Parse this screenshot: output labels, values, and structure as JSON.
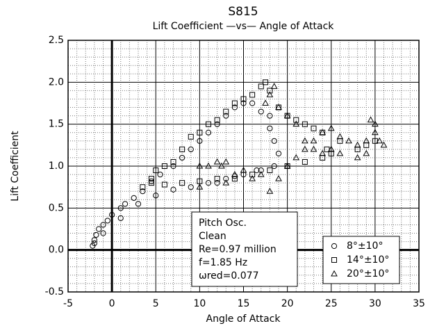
{
  "chart_data": {
    "type": "scatter",
    "title": "S815",
    "subtitle": "Lift Coefficient —vs— Angle of Attack",
    "x_label": "Angle of Attack",
    "y_label": "Lift Coefficient",
    "xlim": [
      -5,
      35
    ],
    "xticks": [
      -5,
      0,
      5,
      10,
      15,
      20,
      25,
      30,
      35
    ],
    "ylim": [
      -0.5,
      2.5
    ],
    "yticks": [
      -0.5,
      {
        "value": 0,
        "label": "0.0"
      },
      0.5,
      {
        "value": 1,
        "label": "1.0"
      },
      1.5,
      {
        "value": 2,
        "label": "2.0"
      },
      2.5
    ],
    "grid": true,
    "legend": "lower right",
    "annotation": [
      "Pitch Osc.",
      "Clean",
      "Re=0.97 million",
      "f=1.85 Hz",
      "ωred=0.077"
    ],
    "series": [
      {
        "name": "8°±10°",
        "color": "#000000",
        "marker": "circle",
        "x": [
          -2.2,
          -2,
          -1.8,
          -1.5,
          -1,
          -0.5,
          0,
          1,
          1.5,
          2.5,
          3.5,
          4.5,
          5.5,
          7,
          8,
          9,
          10,
          11,
          12,
          13,
          14,
          15,
          16,
          17,
          18,
          18.5,
          19,
          18.5,
          17,
          15,
          13,
          11,
          9,
          7,
          5,
          3,
          1,
          -1,
          -2,
          18,
          16.5,
          14,
          12
        ],
        "values": [
          0.05,
          0.12,
          0.18,
          0.25,
          0.3,
          0.35,
          0.42,
          0.5,
          0.55,
          0.62,
          0.7,
          0.82,
          0.9,
          1.0,
          1.1,
          1.2,
          1.3,
          1.4,
          1.5,
          1.6,
          1.7,
          1.75,
          1.75,
          1.65,
          1.45,
          1.3,
          1.15,
          1.0,
          0.95,
          0.9,
          0.85,
          0.8,
          0.75,
          0.72,
          0.65,
          0.55,
          0.38,
          0.2,
          0.08,
          1.6,
          0.95,
          0.88,
          0.8
        ]
      },
      {
        "name": "14°±10°",
        "color": "#000000",
        "marker": "square",
        "x": [
          3.5,
          4.5,
          5,
          6,
          7,
          8,
          9,
          10,
          11,
          12,
          13,
          14,
          15,
          16,
          17,
          17.5,
          18,
          19,
          20,
          21,
          22,
          23,
          24,
          24.5,
          24,
          22,
          20,
          18,
          16,
          14,
          12,
          10,
          8,
          6,
          4.5,
          29,
          30,
          28,
          26,
          25
        ],
        "values": [
          0.75,
          0.85,
          0.95,
          1.0,
          1.05,
          1.2,
          1.35,
          1.4,
          1.5,
          1.55,
          1.65,
          1.75,
          1.8,
          1.85,
          1.95,
          2.0,
          1.9,
          1.7,
          1.6,
          1.55,
          1.5,
          1.45,
          1.4,
          1.2,
          1.1,
          1.05,
          1.0,
          0.95,
          0.9,
          0.85,
          0.85,
          0.82,
          0.8,
          0.78,
          0.8,
          1.25,
          1.3,
          1.2,
          1.3,
          1.15
        ]
      },
      {
        "name": "20°±10°",
        "color": "#000000",
        "marker": "triangle",
        "x": [
          10,
          11,
          12,
          13,
          15,
          17,
          19,
          18,
          20,
          21,
          22,
          23,
          24,
          25,
          26,
          27,
          28,
          29,
          30,
          30,
          29.5,
          30.5,
          31,
          29,
          28,
          26,
          25,
          24,
          23,
          22,
          21,
          20,
          19,
          18,
          18.5,
          17.5,
          16,
          14,
          12.5,
          10,
          13
        ],
        "values": [
          1.0,
          1.0,
          1.05,
          1.05,
          0.95,
          0.9,
          0.85,
          0.7,
          1.0,
          1.1,
          1.2,
          1.3,
          1.4,
          1.45,
          1.35,
          1.3,
          1.25,
          1.3,
          1.4,
          1.5,
          1.55,
          1.3,
          1.25,
          1.15,
          1.1,
          1.15,
          1.2,
          1.15,
          1.2,
          1.3,
          1.5,
          1.6,
          1.7,
          1.85,
          1.95,
          1.75,
          0.85,
          0.9,
          1.0,
          0.75,
          0.8
        ]
      }
    ]
  }
}
